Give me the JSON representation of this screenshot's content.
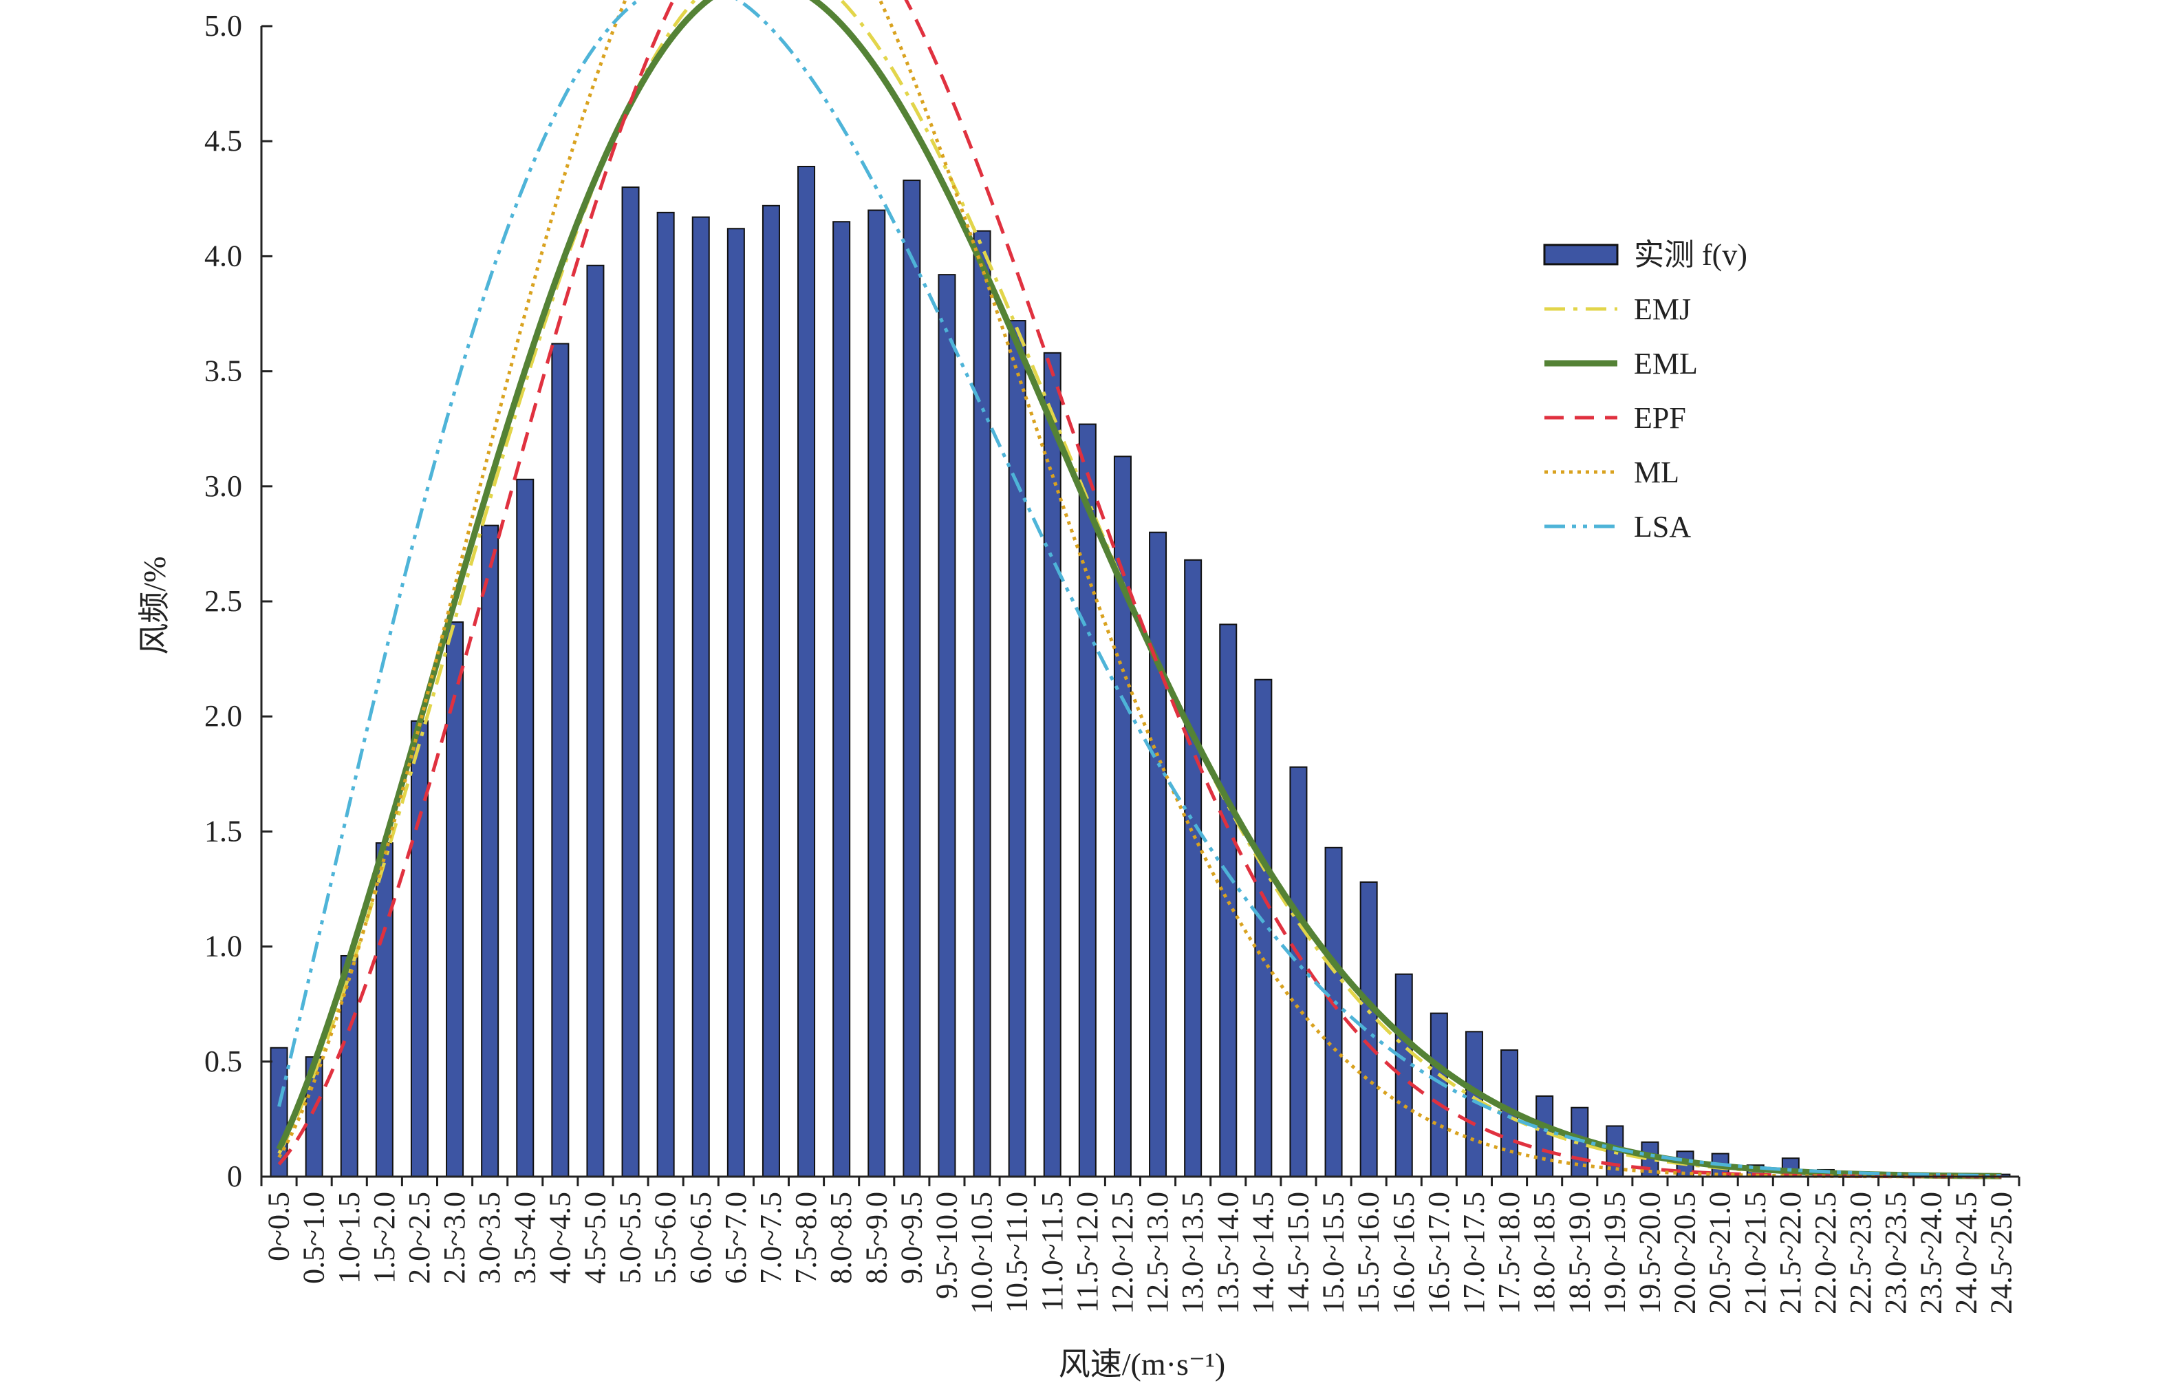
{
  "chart_data": {
    "type": "bar",
    "title": "",
    "xlabel": "风速/(m·s⁻¹)",
    "ylabel": "风频/%",
    "ylim": [
      0,
      5.0
    ],
    "yticks": [
      "0",
      "0.5",
      "1.0",
      "1.5",
      "2.0",
      "2.5",
      "3.0",
      "3.5",
      "4.0",
      "4.5",
      "5.0"
    ],
    "grid": false,
    "legend_position": "right",
    "categories": [
      "0~0.5",
      "0.5~1.0",
      "1.0~1.5",
      "1.5~2.0",
      "2.0~2.5",
      "2.5~3.0",
      "3.0~3.5",
      "3.5~4.0",
      "4.0~4.5",
      "4.5~5.0",
      "5.0~5.5",
      "5.5~6.0",
      "6.0~6.5",
      "6.5~7.0",
      "7.0~7.5",
      "7.5~8.0",
      "8.0~8.5",
      "8.5~9.0",
      "9.0~9.5",
      "9.5~10.0",
      "10.0~10.5",
      "10.5~11.0",
      "11.0~11.5",
      "11.5~12.0",
      "12.0~12.5",
      "12.5~13.0",
      "13.0~13.5",
      "13.5~14.0",
      "14.0~14.5",
      "14.5~15.0",
      "15.0~15.5",
      "15.5~16.0",
      "16.0~16.5",
      "16.5~17.0",
      "17.0~17.5",
      "17.5~18.0",
      "18.0~18.5",
      "18.5~19.0",
      "19.0~19.5",
      "19.5~20.0",
      "20.0~20.5",
      "20.5~21.0",
      "21.0~21.5",
      "21.5~22.0",
      "22.0~22.5",
      "22.5~23.0",
      "23.0~23.5",
      "23.5~24.0",
      "24.0~24.5",
      "24.5~25.0"
    ],
    "bars": {
      "name": "实测 f(v)",
      "color": "#3d55a3",
      "values": [
        0.56,
        0.52,
        0.96,
        1.45,
        1.98,
        2.41,
        2.83,
        3.03,
        3.62,
        3.96,
        4.3,
        4.19,
        4.17,
        4.12,
        4.22,
        4.39,
        4.15,
        4.2,
        4.33,
        3.92,
        4.11,
        3.72,
        3.58,
        3.27,
        3.13,
        2.8,
        2.68,
        2.4,
        2.16,
        1.78,
        1.43,
        1.28,
        0.88,
        0.71,
        0.63,
        0.55,
        0.35,
        0.3,
        0.22,
        0.15,
        0.11,
        0.1,
        0.05,
        0.08,
        0.03,
        0.02,
        0.01,
        0.01,
        0.01,
        0.01
      ]
    },
    "series": [
      {
        "name": "EMJ",
        "color": "#e2d54a",
        "dash": "dashdot",
        "k": 2.35,
        "c": 9.1
      },
      {
        "name": "EML",
        "color": "#548235",
        "dash": "solid",
        "k": 2.3,
        "c": 9.1
      },
      {
        "name": "EPF",
        "color": "#e0313f",
        "dash": "dashed",
        "k": 2.55,
        "c": 9.1
      },
      {
        "name": "ML",
        "color": "#d9a21f",
        "dash": "dotted",
        "k": 2.45,
        "c": 8.6
      },
      {
        "name": "LSA",
        "color": "#4eb4d8",
        "dash": "dashdotdot",
        "k": 2.05,
        "c": 8.4
      }
    ],
    "x_domain": [
      0,
      25
    ]
  },
  "legend": {
    "items": [
      "实测 f(v)",
      "EMJ",
      "EML",
      "EPF",
      "ML",
      "LSA"
    ]
  }
}
